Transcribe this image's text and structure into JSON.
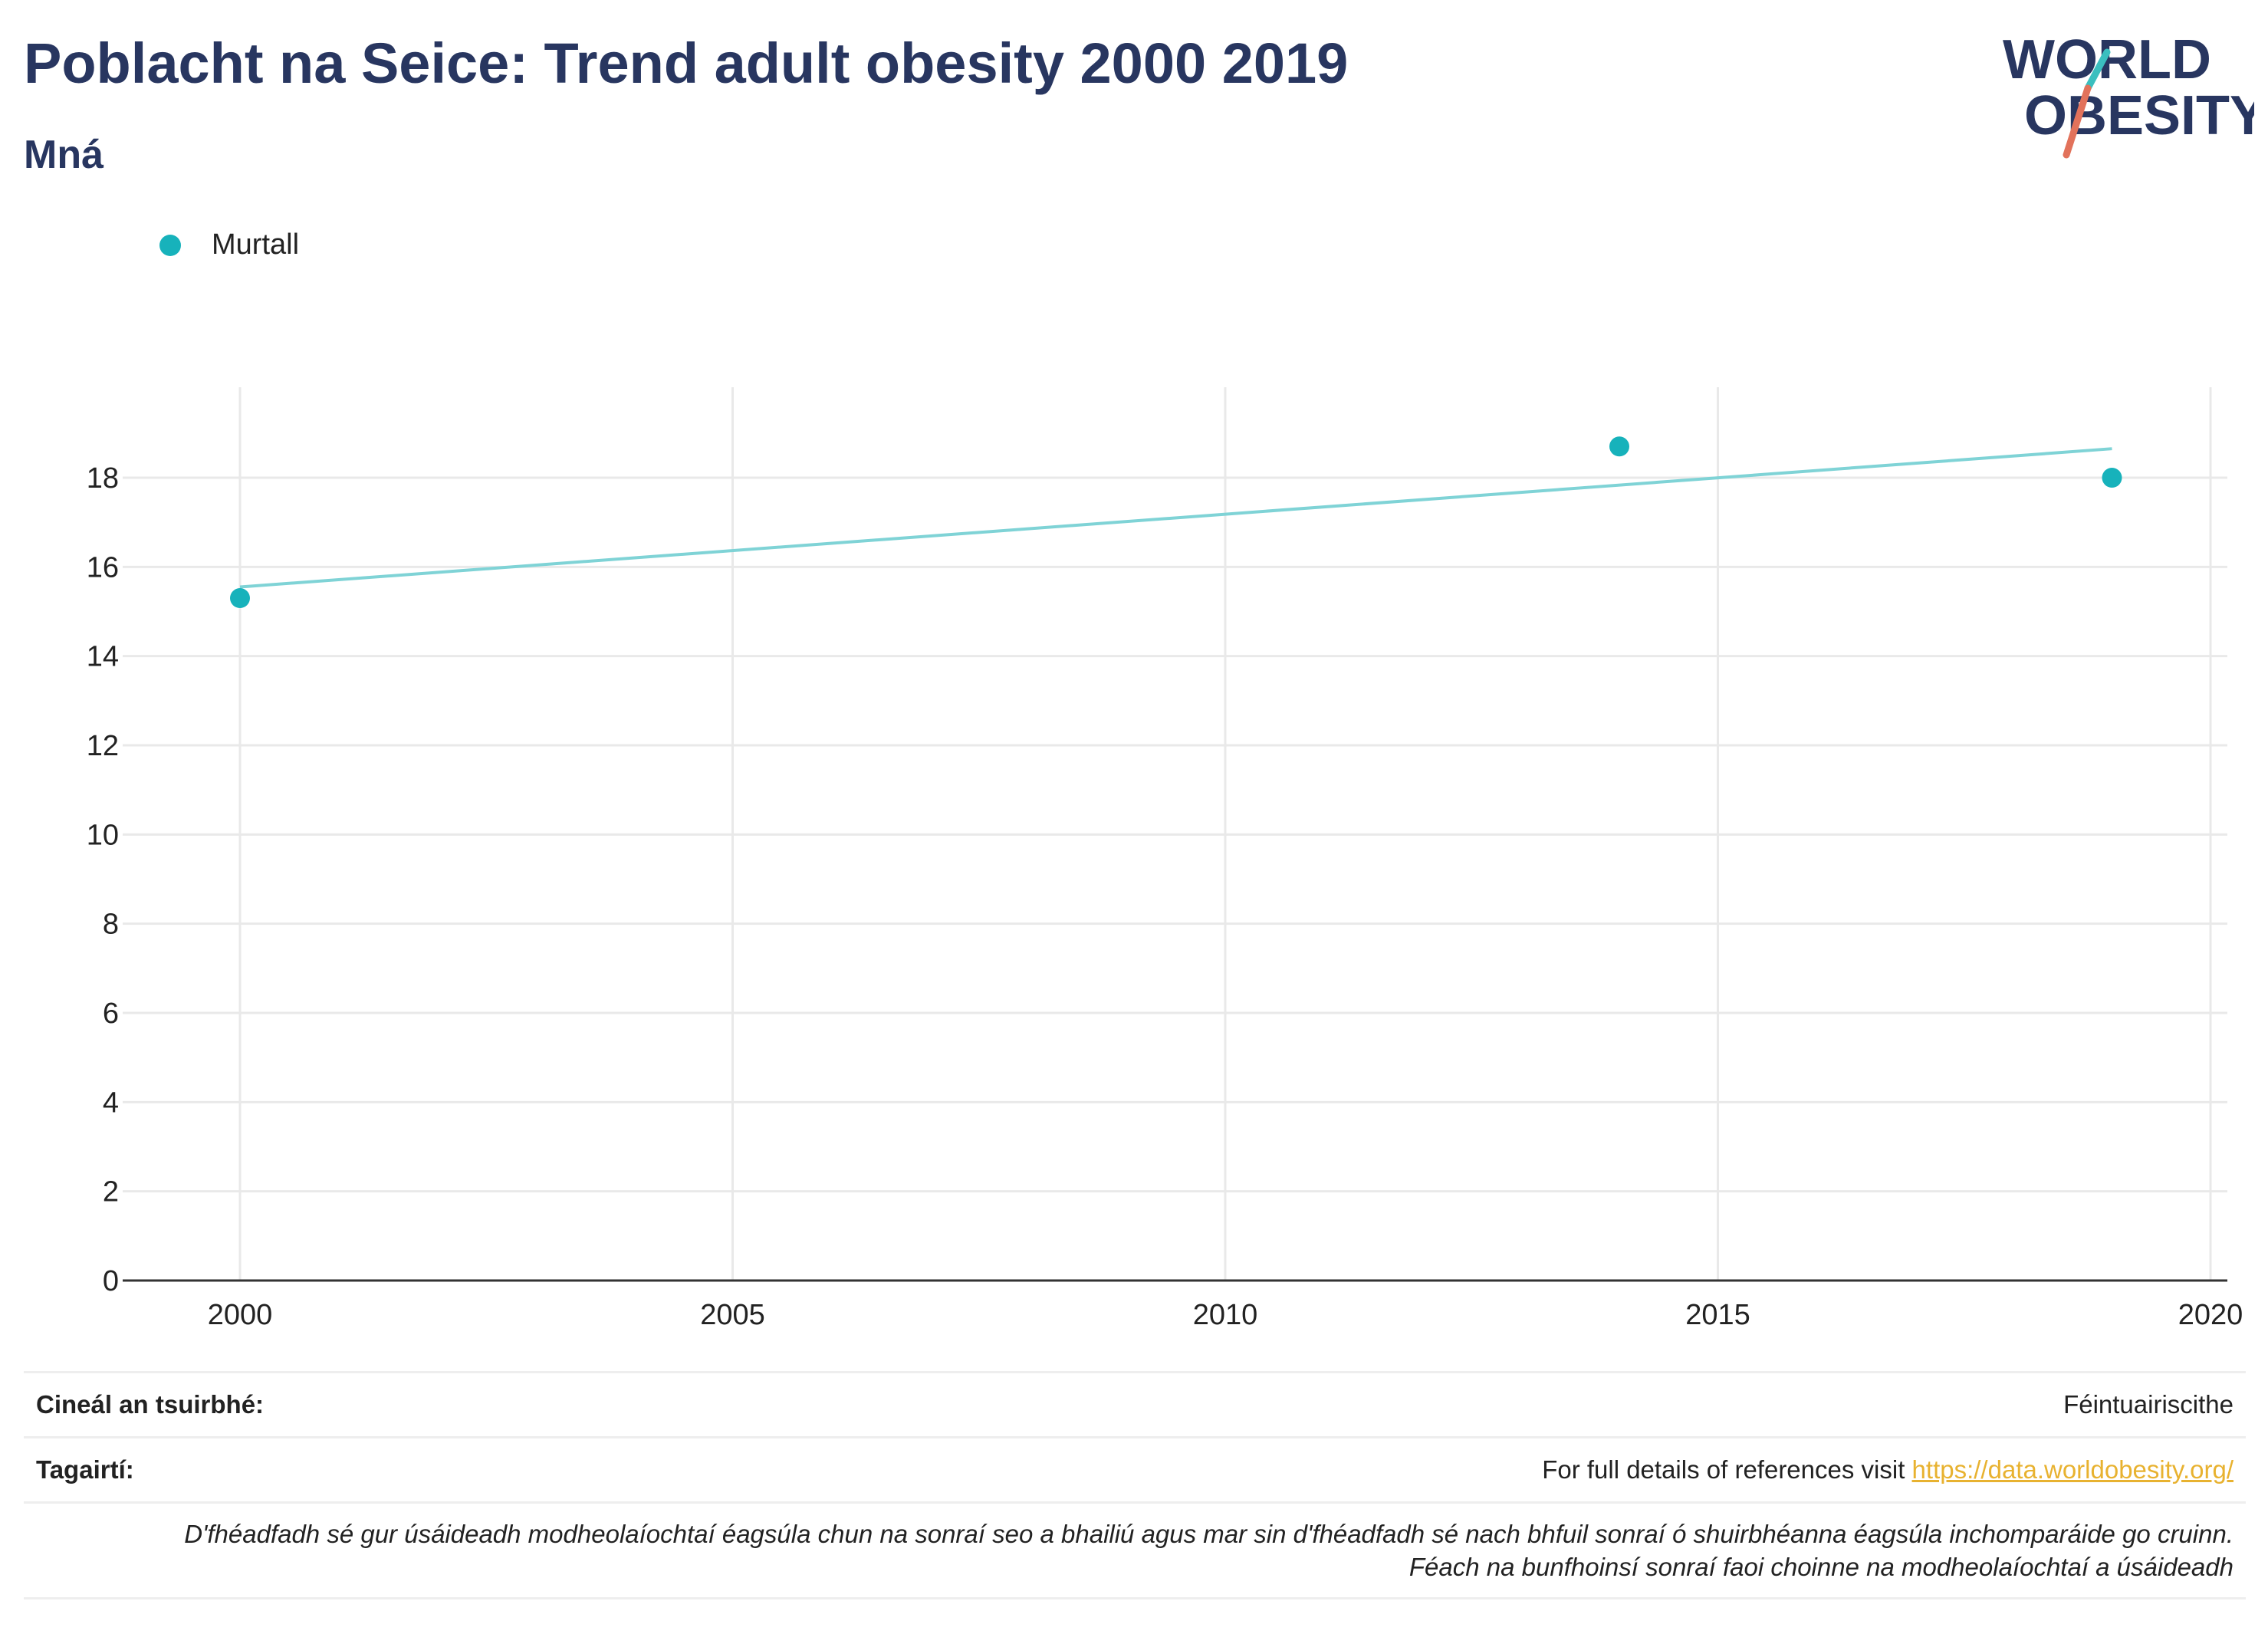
{
  "header": {
    "title": "Poblacht na Seice: Trend adult obesity 2000 2019",
    "subtitle": "Mná"
  },
  "logo": {
    "line1": "WORLD",
    "line2": "OBESITY",
    "accent_teal": "#3bbfbf",
    "accent_coral": "#e2725b",
    "text_color": "#283660"
  },
  "legend": {
    "label": "Murtall",
    "color": "#17b2bb"
  },
  "chart_data": {
    "type": "scatter",
    "title": "Poblacht na Seice: Trend adult obesity 2000 2019",
    "subtitle": "Mná",
    "xlabel": "",
    "ylabel": "",
    "x_ticks": [
      2000,
      2005,
      2010,
      2015,
      2020
    ],
    "y_ticks": [
      0,
      2,
      4,
      6,
      8,
      10,
      12,
      14,
      16,
      18
    ],
    "xlim": [
      1998.8,
      2020.2
    ],
    "ylim": [
      0,
      20
    ],
    "grid": true,
    "legend_position": "top-left",
    "series": [
      {
        "name": "Murtall",
        "color": "#17b2bb",
        "points": [
          {
            "x": 2000,
            "y": 15.3
          },
          {
            "x": 2014,
            "y": 18.7
          },
          {
            "x": 2019,
            "y": 18.0
          }
        ]
      }
    ],
    "trendline": {
      "color": "#7fd3d6",
      "start": {
        "x": 2000,
        "y": 15.55
      },
      "end": {
        "x": 2019,
        "y": 18.65
      }
    }
  },
  "info": {
    "survey_type_label": "Cineál an tsuirbhé:",
    "survey_type_value": "Féintuairiscithe",
    "references_label": "Tagairtí:",
    "references_text": "For full details of references visit ",
    "references_link": "https://data.worldobesity.org/",
    "note_line1": "D'fhéadfadh sé gur úsáideadh modheolaíochtaí éagsúla chun na sonraí seo a bhailiú agus mar sin d'fhéadfadh sé nach bhfuil sonraí ó shuirbhéanna éagsúla inchomparáide go cruinn.",
    "note_line2": "Féach na bunfhoinsí sonraí faoi choinne na modheolaíochtaí a úsáideadh"
  }
}
